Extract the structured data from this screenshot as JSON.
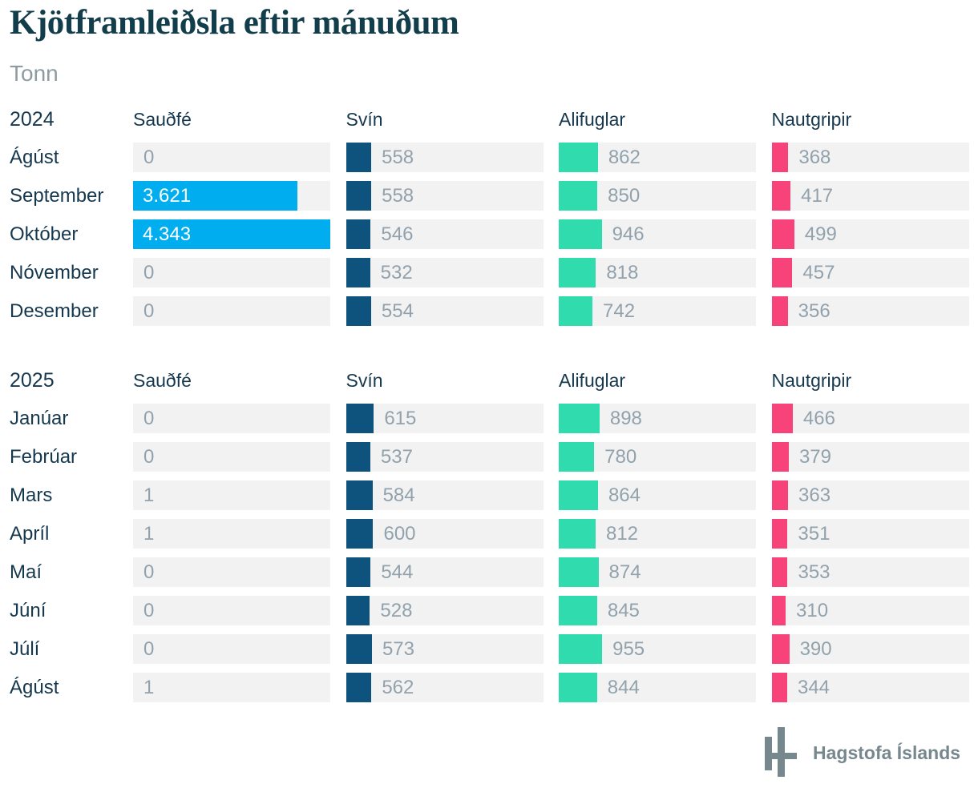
{
  "title": "Kjötframleiðsla eftir mánuðum",
  "subtitle": "Tonn",
  "footer": {
    "source_label": "Hagstofa Íslands"
  },
  "colors": {
    "highlight": "#00AEEF",
    "svin": "#0E527E",
    "alifuglar": "#30DBAD",
    "nautgripir": "#F8427A",
    "track": "#F2F2F3",
    "value_text": "#92A2AC",
    "label_text": "#16384E",
    "title_text": "#123D4B",
    "subtitle_text": "#8D9CA3",
    "footer_text": "#76878D"
  },
  "chart_data": {
    "type": "bar",
    "orientation": "horizontal",
    "title": "Kjötframleiðsla eftir mánuðum",
    "unit": "Tonn",
    "scale_max": 4343,
    "grid": false,
    "legend_position": "column-headers",
    "series_names": [
      "Sauðfé",
      "Svín",
      "Alifuglar",
      "Nautgripir"
    ],
    "series_colors": [
      "#00AEEF",
      "#0E527E",
      "#30DBAD",
      "#F8427A"
    ],
    "groups": [
      {
        "year": "2024",
        "rows": [
          {
            "month": "Ágúst",
            "values": [
              0,
              558,
              862,
              368
            ],
            "labels": [
              "0",
              "558",
              "862",
              "368"
            ]
          },
          {
            "month": "September",
            "values": [
              3621,
              558,
              850,
              417
            ],
            "labels": [
              "3.621",
              "558",
              "850",
              "417"
            ]
          },
          {
            "month": "Október",
            "values": [
              4343,
              546,
              946,
              499
            ],
            "labels": [
              "4.343",
              "546",
              "946",
              "499"
            ]
          },
          {
            "month": "Nóvember",
            "values": [
              0,
              532,
              818,
              457
            ],
            "labels": [
              "0",
              "532",
              "818",
              "457"
            ]
          },
          {
            "month": "Desember",
            "values": [
              0,
              554,
              742,
              356
            ],
            "labels": [
              "0",
              "554",
              "742",
              "356"
            ]
          }
        ]
      },
      {
        "year": "2025",
        "rows": [
          {
            "month": "Janúar",
            "values": [
              0,
              615,
              898,
              466
            ],
            "labels": [
              "0",
              "615",
              "898",
              "466"
            ]
          },
          {
            "month": "Febrúar",
            "values": [
              0,
              537,
              780,
              379
            ],
            "labels": [
              "0",
              "537",
              "780",
              "379"
            ]
          },
          {
            "month": "Mars",
            "values": [
              1,
              584,
              864,
              363
            ],
            "labels": [
              "1",
              "584",
              "864",
              "363"
            ]
          },
          {
            "month": "Apríl",
            "values": [
              1,
              600,
              812,
              351
            ],
            "labels": [
              "1",
              "600",
              "812",
              "351"
            ]
          },
          {
            "month": "Maí",
            "values": [
              0,
              544,
              874,
              353
            ],
            "labels": [
              "0",
              "544",
              "874",
              "353"
            ]
          },
          {
            "month": "Júní",
            "values": [
              0,
              528,
              845,
              310
            ],
            "labels": [
              "0",
              "528",
              "845",
              "310"
            ]
          },
          {
            "month": "Júlí",
            "values": [
              0,
              573,
              955,
              390
            ],
            "labels": [
              "0",
              "573",
              "955",
              "390"
            ]
          },
          {
            "month": "Ágúst",
            "values": [
              1,
              562,
              844,
              344
            ],
            "labels": [
              "1",
              "562",
              "844",
              "344"
            ]
          }
        ]
      }
    ]
  }
}
